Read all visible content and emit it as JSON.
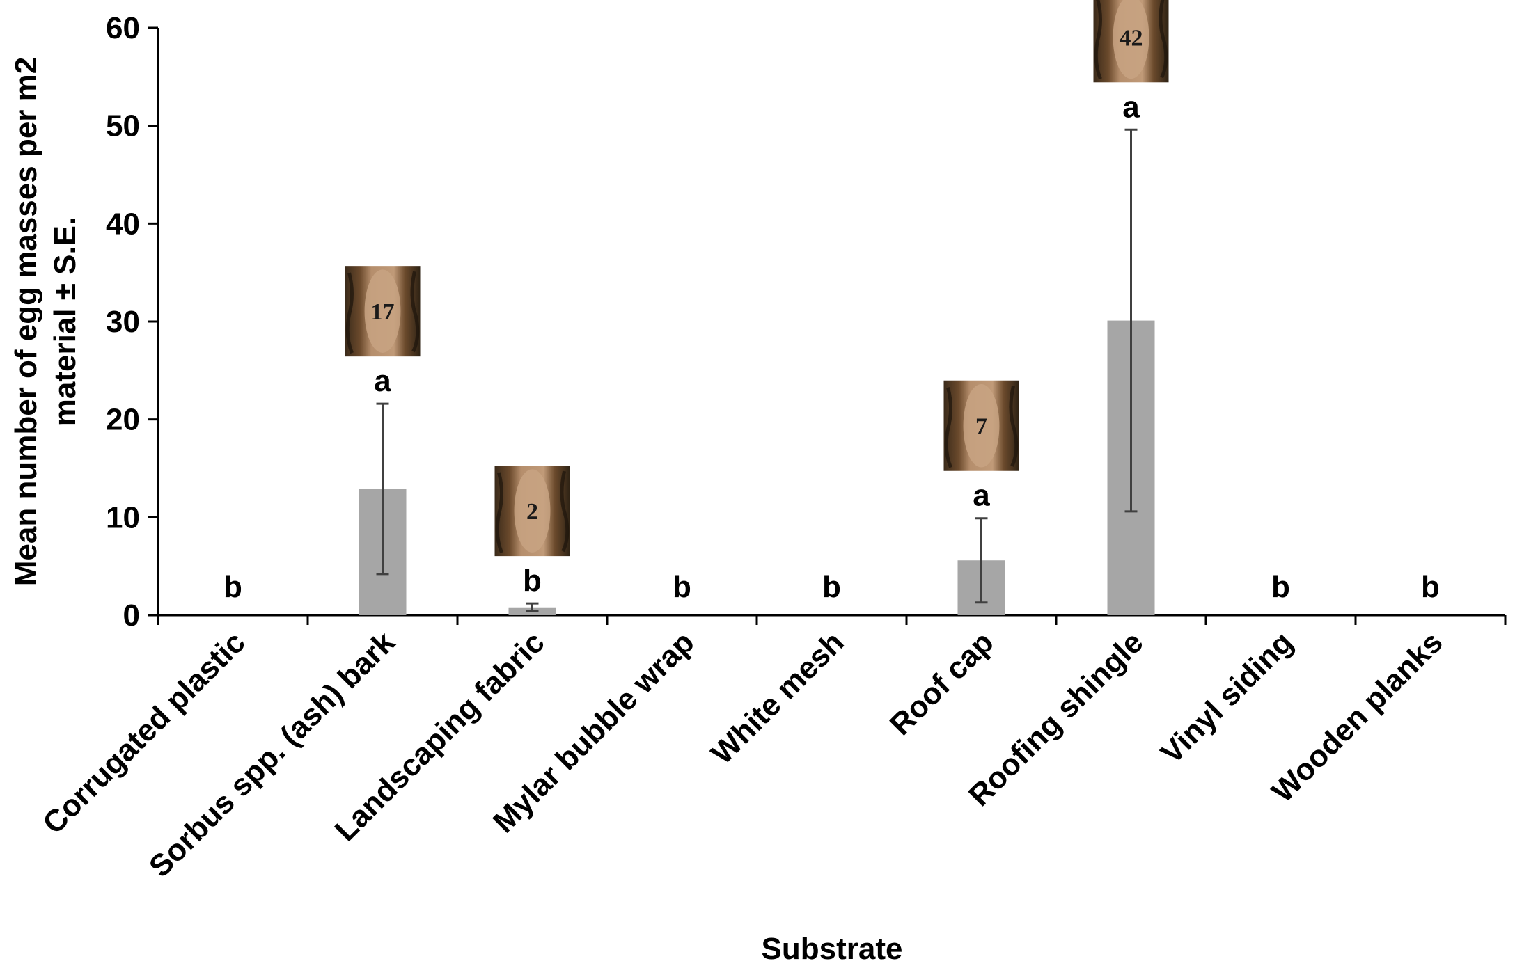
{
  "chart_data": {
    "type": "bar",
    "categories": [
      "Corrugated plastic",
      "Sorbus spp. (ash) bark",
      "Landscaping fabric",
      "Mylar bubble wrap",
      "White mesh",
      "Roof cap",
      "Roofing shingle",
      "Vinyl siding",
      "Wooden planks"
    ],
    "values": [
      0,
      12.9,
      0.8,
      0,
      0,
      5.6,
      30.1,
      0,
      0
    ],
    "errors": [
      0,
      8.7,
      0.4,
      0,
      0,
      4.3,
      19.5,
      0,
      0
    ],
    "letters": [
      "b",
      "a",
      "b",
      "b",
      "b",
      "a",
      "a",
      "b",
      "b"
    ],
    "photo_counts": [
      "",
      "17",
      "2",
      "",
      "",
      "7",
      "42",
      "",
      ""
    ],
    "xlabel": "Substrate",
    "ylabel_lines": [
      "Mean number of egg masses per m2",
      "material ± S.E."
    ],
    "ylim": [
      0,
      60
    ],
    "yticks": [
      0,
      10,
      20,
      30,
      40,
      50,
      60
    ],
    "bar_color": "#a6a6a6",
    "error_color": "#404040",
    "grid": false,
    "legend": "none"
  }
}
